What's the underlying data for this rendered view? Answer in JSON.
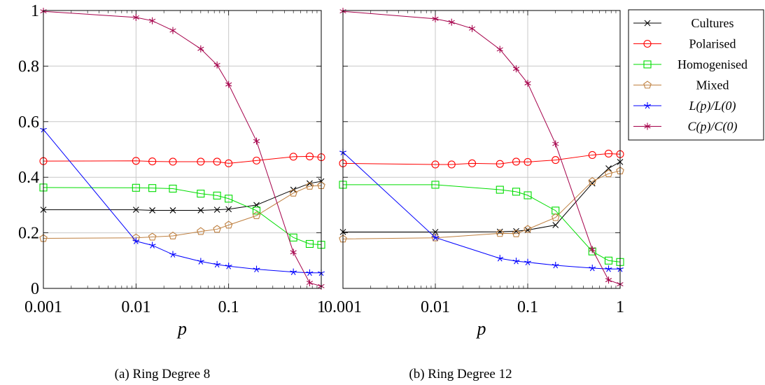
{
  "chart_data": [
    {
      "type": "line",
      "caption": "(a) Ring Degree 8",
      "xlabel": "p",
      "xscale": "log",
      "xlim": [
        0.001,
        1
      ],
      "ylim": [
        0,
        1
      ],
      "xticks": [
        "0.001",
        "0.01",
        "0.1",
        "1"
      ],
      "yticks": [
        "0",
        "0.2",
        "0.4",
        "0.6",
        "0.8",
        "1"
      ],
      "grid": true,
      "series": [
        {
          "name": "Cultures",
          "color": "#000000",
          "marker": "x",
          "x": [
            0.001,
            0.01,
            0.015,
            0.025,
            0.05,
            0.075,
            0.1,
            0.2,
            0.5,
            0.75,
            1
          ],
          "y": [
            0.283,
            0.283,
            0.281,
            0.281,
            0.281,
            0.283,
            0.285,
            0.3,
            0.355,
            0.378,
            0.385
          ]
        },
        {
          "name": "Polarised",
          "color": "#ff0000",
          "marker": "circle",
          "x": [
            0.001,
            0.01,
            0.015,
            0.025,
            0.05,
            0.075,
            0.1,
            0.2,
            0.5,
            0.75,
            1
          ],
          "y": [
            0.458,
            0.459,
            0.457,
            0.456,
            0.456,
            0.456,
            0.45,
            0.46,
            0.474,
            0.475,
            0.472
          ]
        },
        {
          "name": "Homogenised",
          "color": "#00dd00",
          "marker": "square",
          "x": [
            0.001,
            0.01,
            0.015,
            0.025,
            0.05,
            0.075,
            0.1,
            0.2,
            0.5,
            0.75,
            1
          ],
          "y": [
            0.363,
            0.362,
            0.361,
            0.359,
            0.341,
            0.334,
            0.323,
            0.28,
            0.183,
            0.16,
            0.157
          ]
        },
        {
          "name": "Mixed",
          "color": "#bf8040",
          "marker": "pentagon",
          "x": [
            0.001,
            0.01,
            0.015,
            0.025,
            0.05,
            0.075,
            0.1,
            0.2,
            0.5,
            0.75,
            1
          ],
          "y": [
            0.18,
            0.182,
            0.185,
            0.189,
            0.205,
            0.213,
            0.228,
            0.262,
            0.343,
            0.368,
            0.37
          ]
        },
        {
          "name": "L(p)/L(0)",
          "color": "#0000ff",
          "marker": "star",
          "x": [
            0.001,
            0.01,
            0.015,
            0.025,
            0.05,
            0.075,
            0.1,
            0.2,
            0.5,
            0.75,
            1
          ],
          "y": [
            0.572,
            0.17,
            0.155,
            0.122,
            0.097,
            0.086,
            0.08,
            0.069,
            0.059,
            0.056,
            0.056
          ]
        },
        {
          "name": "C(p)/C(0)",
          "color": "#a5004a",
          "marker": "asterisk",
          "x": [
            0.001,
            0.01,
            0.015,
            0.025,
            0.05,
            0.075,
            0.1,
            0.2,
            0.5,
            0.75,
            1
          ],
          "y": [
            0.997,
            0.975,
            0.963,
            0.928,
            0.862,
            0.804,
            0.734,
            0.53,
            0.13,
            0.02,
            0.008
          ]
        }
      ]
    },
    {
      "type": "line",
      "caption": "(b) Ring Degree 12",
      "xlabel": "p",
      "xscale": "log",
      "xlim": [
        0.001,
        1
      ],
      "ylim": [
        0,
        1
      ],
      "xticks": [
        "0.001",
        "0.01",
        "0.1",
        "1"
      ],
      "yticks": [],
      "grid": true,
      "series": [
        {
          "name": "Cultures",
          "color": "#000000",
          "marker": "x",
          "x": [
            0.001,
            0.01,
            0.05,
            0.075,
            0.1,
            0.2,
            0.5,
            0.75,
            1
          ],
          "y": [
            0.203,
            0.203,
            0.204,
            0.206,
            0.21,
            0.228,
            0.378,
            0.432,
            0.455
          ]
        },
        {
          "name": "Polarised",
          "color": "#ff0000",
          "marker": "circle",
          "x": [
            0.001,
            0.01,
            0.015,
            0.025,
            0.05,
            0.075,
            0.1,
            0.2,
            0.5,
            0.75,
            1
          ],
          "y": [
            0.45,
            0.446,
            0.446,
            0.45,
            0.448,
            0.456,
            0.455,
            0.462,
            0.48,
            0.485,
            0.483
          ]
        },
        {
          "name": "Homogenised",
          "color": "#00dd00",
          "marker": "square",
          "x": [
            0.001,
            0.01,
            0.05,
            0.075,
            0.1,
            0.2,
            0.5,
            0.75,
            1
          ],
          "y": [
            0.373,
            0.373,
            0.355,
            0.348,
            0.335,
            0.28,
            0.133,
            0.1,
            0.095
          ]
        },
        {
          "name": "Mixed",
          "color": "#bf8040",
          "marker": "pentagon",
          "x": [
            0.001,
            0.01,
            0.05,
            0.075,
            0.1,
            0.2,
            0.5,
            0.75,
            1
          ],
          "y": [
            0.178,
            0.182,
            0.198,
            0.197,
            0.213,
            0.255,
            0.385,
            0.413,
            0.423
          ]
        },
        {
          "name": "L(p)/L(0)",
          "color": "#0000ff",
          "marker": "star",
          "x": [
            0.001,
            0.01,
            0.05,
            0.075,
            0.1,
            0.2,
            0.5,
            0.75,
            1
          ],
          "y": [
            0.49,
            0.183,
            0.108,
            0.098,
            0.094,
            0.083,
            0.073,
            0.07,
            0.07
          ]
        },
        {
          "name": "C(p)/C(0)",
          "color": "#a5004a",
          "marker": "asterisk",
          "x": [
            0.001,
            0.01,
            0.015,
            0.025,
            0.05,
            0.075,
            0.1,
            0.2,
            0.5,
            0.75,
            1
          ],
          "y": [
            0.997,
            0.97,
            0.958,
            0.935,
            0.86,
            0.79,
            0.738,
            0.52,
            0.14,
            0.03,
            0.015
          ]
        }
      ]
    }
  ],
  "legend": {
    "placement": "right",
    "entries": [
      {
        "label": "Cultures",
        "color": "#000000",
        "marker": "x"
      },
      {
        "label": "Polarised",
        "color": "#ff0000",
        "marker": "circle"
      },
      {
        "label": "Homogenised",
        "color": "#00dd00",
        "marker": "square"
      },
      {
        "label": "Mixed",
        "color": "#bf8040",
        "marker": "pentagon"
      },
      {
        "label": "L(p)/L(0)",
        "color": "#0000ff",
        "marker": "star"
      },
      {
        "label": "C(p)/C(0)",
        "color": "#a5004a",
        "marker": "asterisk"
      }
    ]
  }
}
